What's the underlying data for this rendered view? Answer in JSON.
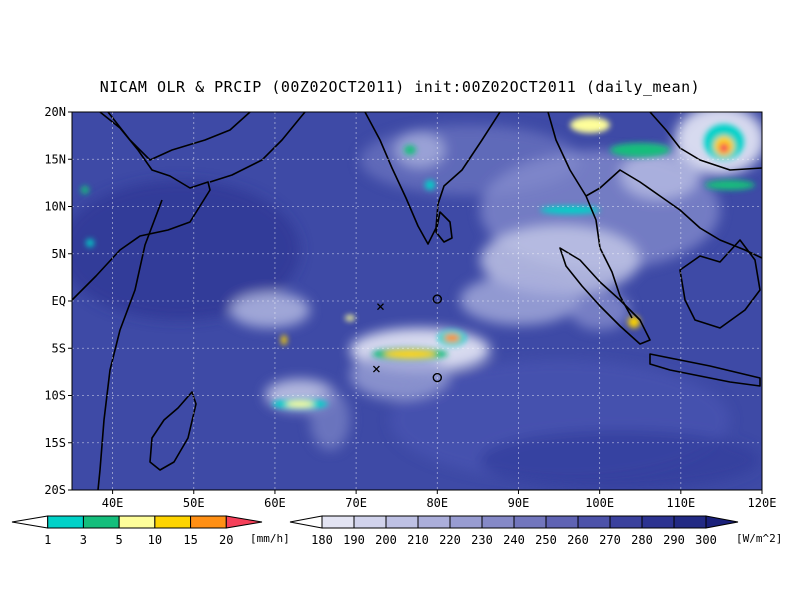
{
  "title": "NICAM OLR & PRCIP (00Z02OCT2011) init:00Z02OCT2011 (daily_mean)",
  "map": {
    "lon_range": [
      35,
      120
    ],
    "lat_range": [
      -20,
      20
    ],
    "lat_ticks": [
      "20N",
      "15N",
      "10N",
      "5N",
      "EQ",
      "5S",
      "10S",
      "15S",
      "20S"
    ],
    "lon_ticks": [
      "40E",
      "50E",
      "60E",
      "70E",
      "80E",
      "90E",
      "100E",
      "110E",
      "120E"
    ],
    "grid": "dotted",
    "background_color": "#3e4aa6",
    "markers": [
      {
        "type": "x",
        "lon": 73,
        "lat": -0.6
      },
      {
        "type": "x",
        "lon": 72.5,
        "lat": -7.2
      },
      {
        "type": "circle",
        "lon": 80,
        "lat": 0.2
      },
      {
        "type": "circle",
        "lon": 80,
        "lat": -8.1
      }
    ]
  },
  "precip_legend": {
    "labels": [
      "1",
      "3",
      "5",
      "10",
      "15",
      "20"
    ],
    "unit": "[mm/h]",
    "colors": [
      "#ffffff",
      "#00d2c8",
      "#14be7c",
      "#fefe9a",
      "#fed400",
      "#ff8f14",
      "#f5405a"
    ]
  },
  "olr_legend": {
    "labels": [
      "180",
      "190",
      "200",
      "210",
      "220",
      "230",
      "240",
      "250",
      "260",
      "270",
      "280",
      "290",
      "300"
    ],
    "unit": "[W/m^2]",
    "colors": [
      "#ffffff",
      "#e3e4f3",
      "#d1d3ec",
      "#bec1e4",
      "#abaeda",
      "#989cd1",
      "#8589c7",
      "#7276bd",
      "#5f63b3",
      "#4c52a9",
      "#3a419d",
      "#2c3391",
      "#222a84",
      "#1a207a"
    ]
  }
}
